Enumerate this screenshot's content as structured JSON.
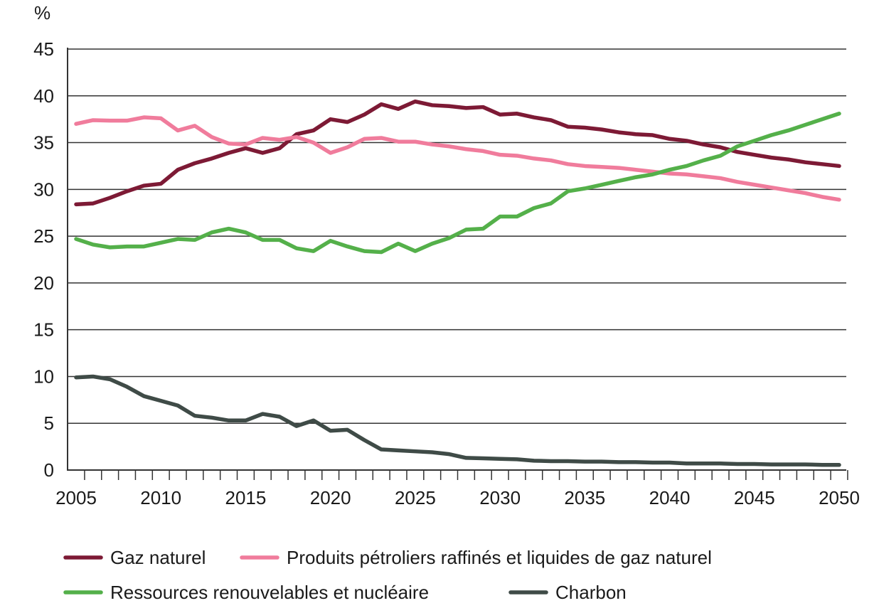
{
  "chart_data": {
    "type": "line",
    "title": "",
    "ylabel": "%",
    "xlabel": "",
    "xlim": [
      2005,
      2050
    ],
    "ylim": [
      0,
      45
    ],
    "yticks": [
      0,
      5,
      10,
      15,
      20,
      25,
      30,
      35,
      40,
      45
    ],
    "xticks": [
      2005,
      2010,
      2015,
      2020,
      2025,
      2030,
      2035,
      2040,
      2045,
      2050
    ],
    "grid": "horizontal",
    "legend_placement": "bottom",
    "x": [
      2005,
      2006,
      2007,
      2008,
      2009,
      2010,
      2011,
      2012,
      2013,
      2014,
      2015,
      2016,
      2017,
      2018,
      2019,
      2020,
      2021,
      2022,
      2023,
      2024,
      2025,
      2026,
      2027,
      2028,
      2029,
      2030,
      2031,
      2032,
      2033,
      2034,
      2035,
      2036,
      2037,
      2038,
      2039,
      2040,
      2041,
      2042,
      2043,
      2044,
      2045,
      2046,
      2047,
      2048,
      2049,
      2050
    ],
    "series": [
      {
        "name": "Gaz naturel",
        "color": "#7d1a35",
        "values": [
          28.4,
          28.5,
          29.1,
          29.8,
          30.4,
          30.6,
          32.1,
          32.8,
          33.3,
          33.9,
          34.4,
          33.9,
          34.4,
          35.9,
          36.3,
          37.5,
          37.2,
          38.0,
          39.1,
          38.6,
          39.4,
          39.0,
          38.9,
          38.7,
          38.8,
          38.0,
          38.1,
          37.7,
          37.4,
          36.7,
          36.6,
          36.4,
          36.1,
          35.9,
          35.8,
          35.4,
          35.2,
          34.8,
          34.5,
          34.0,
          33.7,
          33.4,
          33.2,
          32.9,
          32.7,
          32.5
        ]
      },
      {
        "name": "Produits pétroliers raffinés et liquides de gaz naturel",
        "color": "#f07c9c",
        "values": [
          37.0,
          37.4,
          37.35,
          37.35,
          37.7,
          37.6,
          36.3,
          36.8,
          35.6,
          34.9,
          34.8,
          35.5,
          35.3,
          35.6,
          35.0,
          33.9,
          34.5,
          35.4,
          35.5,
          35.1,
          35.1,
          34.8,
          34.6,
          34.3,
          34.1,
          33.7,
          33.6,
          33.3,
          33.1,
          32.7,
          32.5,
          32.4,
          32.3,
          32.1,
          31.9,
          31.7,
          31.6,
          31.4,
          31.2,
          30.8,
          30.5,
          30.2,
          29.9,
          29.6,
          29.2,
          28.9
        ]
      },
      {
        "name": "Ressources renouvelables et nucléaire",
        "color": "#54b04a",
        "values": [
          24.7,
          24.1,
          23.8,
          23.9,
          23.9,
          24.3,
          24.7,
          24.6,
          25.4,
          25.8,
          25.4,
          24.6,
          24.6,
          23.7,
          23.4,
          24.5,
          23.9,
          23.4,
          23.3,
          24.2,
          23.4,
          24.2,
          24.8,
          25.7,
          25.8,
          27.1,
          27.1,
          28.0,
          28.5,
          29.8,
          30.1,
          30.5,
          30.9,
          31.3,
          31.6,
          32.1,
          32.5,
          33.1,
          33.6,
          34.6,
          35.2,
          35.8,
          36.3,
          36.9,
          37.5,
          38.1
        ]
      },
      {
        "name": "Charbon",
        "color": "#3f4b47",
        "values": [
          9.9,
          10.0,
          9.7,
          8.9,
          7.9,
          7.4,
          6.9,
          5.8,
          5.6,
          5.3,
          5.3,
          6.0,
          5.7,
          4.7,
          5.3,
          4.2,
          4.3,
          3.2,
          2.2,
          2.1,
          2.0,
          1.9,
          1.7,
          1.3,
          1.25,
          1.2,
          1.15,
          1.0,
          0.95,
          0.95,
          0.9,
          0.9,
          0.85,
          0.85,
          0.8,
          0.8,
          0.7,
          0.7,
          0.7,
          0.65,
          0.65,
          0.6,
          0.6,
          0.6,
          0.55,
          0.55
        ]
      }
    ]
  }
}
